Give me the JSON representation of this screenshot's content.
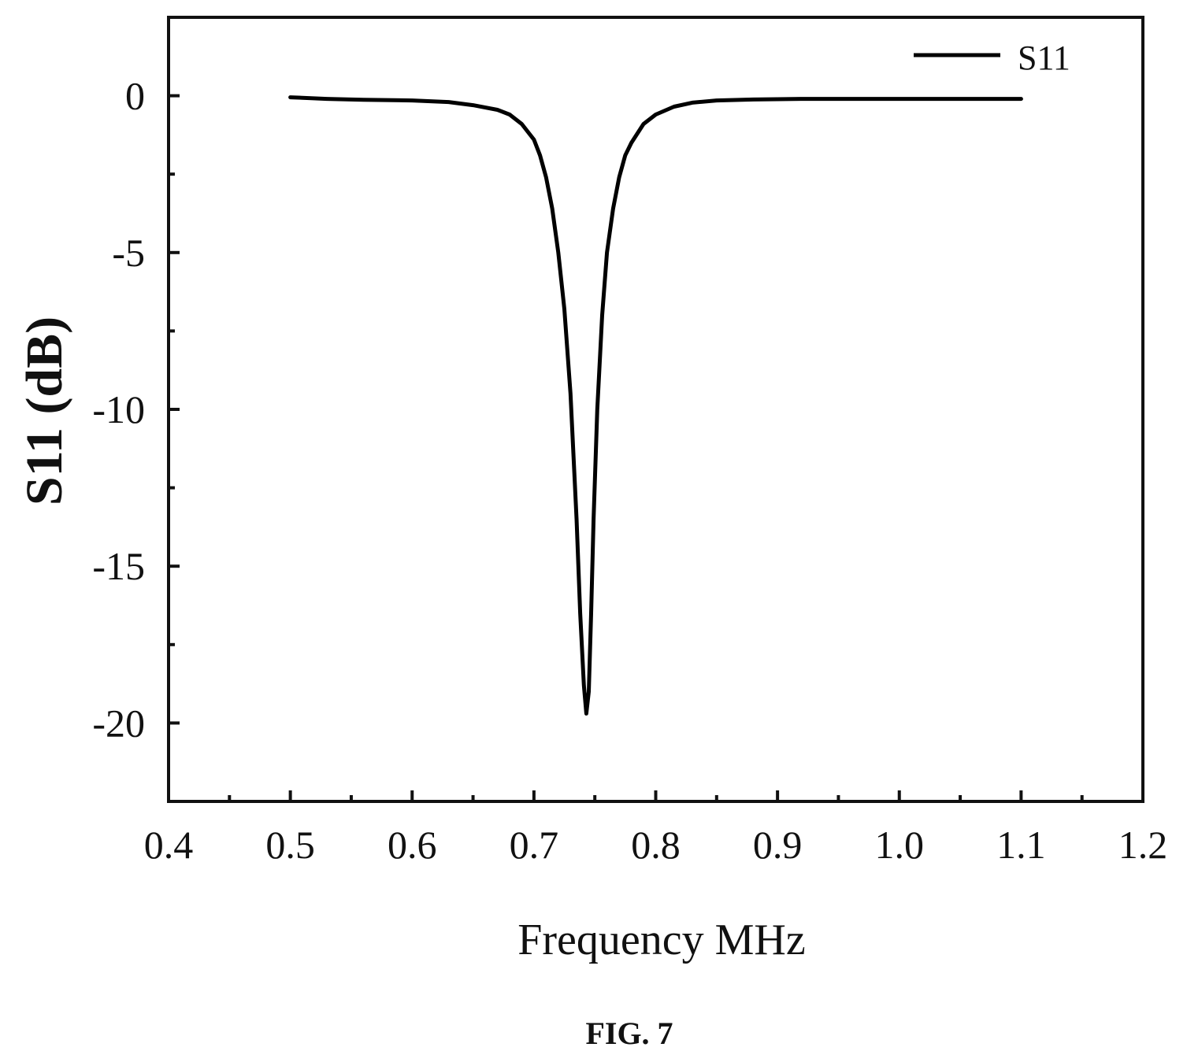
{
  "figure": {
    "caption": "FIG. 7"
  },
  "chart_data": {
    "type": "line",
    "xlabel": "Frequency MHz",
    "ylabel": "S11 (dB)",
    "xlim": [
      0.4,
      1.2
    ],
    "ylim": [
      -22.5,
      2.5
    ],
    "x_ticks": [
      0.4,
      0.5,
      0.6,
      0.7,
      0.8,
      0.9,
      1.0,
      1.1,
      1.2
    ],
    "x_tick_labels": [
      "0.4",
      "0.5",
      "0.6",
      "0.7",
      "0.8",
      "0.9",
      "1.0",
      "1.1",
      "1.2"
    ],
    "y_ticks": [
      0,
      -5,
      -10,
      -15,
      -20
    ],
    "y_tick_labels": [
      "0",
      "-5",
      "-10",
      "-15",
      "-20"
    ],
    "grid": false,
    "legend_position": "top-right",
    "line_color": "#000000",
    "series": [
      {
        "name": "S11",
        "x": [
          0.5,
          0.53,
          0.56,
          0.6,
          0.63,
          0.65,
          0.67,
          0.68,
          0.69,
          0.7,
          0.705,
          0.71,
          0.715,
          0.72,
          0.725,
          0.73,
          0.735,
          0.738,
          0.741,
          0.743,
          0.745,
          0.747,
          0.749,
          0.752,
          0.756,
          0.76,
          0.765,
          0.77,
          0.775,
          0.78,
          0.79,
          0.8,
          0.815,
          0.83,
          0.85,
          0.88,
          0.92,
          1.0,
          1.05,
          1.1
        ],
        "y": [
          -0.05,
          -0.1,
          -0.13,
          -0.15,
          -0.2,
          -0.3,
          -0.45,
          -0.6,
          -0.9,
          -1.4,
          -1.9,
          -2.6,
          -3.6,
          -5.0,
          -6.8,
          -9.5,
          -13.5,
          -16.5,
          -18.8,
          -19.7,
          -19.0,
          -16.5,
          -13.5,
          -10.0,
          -7.0,
          -5.0,
          -3.6,
          -2.6,
          -1.9,
          -1.5,
          -0.9,
          -0.6,
          -0.35,
          -0.22,
          -0.15,
          -0.12,
          -0.1,
          -0.1,
          -0.1,
          -0.1
        ]
      }
    ]
  }
}
